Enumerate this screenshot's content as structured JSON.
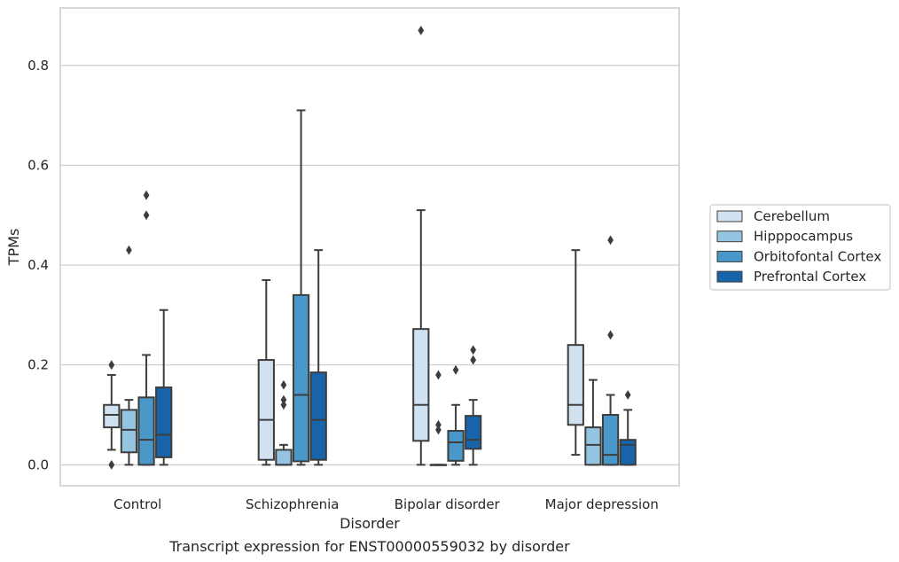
{
  "chart_data": {
    "type": "box",
    "title": "",
    "caption": "Transcript expression for ENST00000559032 by disorder",
    "xlabel": "Disorder",
    "ylabel": "TPMs",
    "ylim": [
      -0.042,
      0.915
    ],
    "yticks": [
      0.0,
      0.2,
      0.4,
      0.6,
      0.8
    ],
    "ytick_labels": [
      "0.0",
      "0.2",
      "0.4",
      "0.6",
      "0.8"
    ],
    "grid": "horizontal",
    "legend_placement": "right",
    "categories": [
      "Control",
      "Schizophrenia",
      "Bipolar disorder",
      "Major depression"
    ],
    "series": [
      {
        "name": "Cerebellum",
        "color": "#d0e1f2",
        "boxes": [
          {
            "whisker_low": 0.03,
            "q1": 0.075,
            "median": 0.1,
            "q3": 0.12,
            "whisker_high": 0.18,
            "outliers": [
              0.2,
              0.0
            ]
          },
          {
            "whisker_low": 0.0,
            "q1": 0.01,
            "median": 0.09,
            "q3": 0.21,
            "whisker_high": 0.37,
            "outliers": []
          },
          {
            "whisker_low": 0.0,
            "q1": 0.048,
            "median": 0.12,
            "q3": 0.272,
            "whisker_high": 0.51,
            "outliers": [
              0.87
            ]
          },
          {
            "whisker_low": 0.02,
            "q1": 0.08,
            "median": 0.12,
            "q3": 0.24,
            "whisker_high": 0.43,
            "outliers": []
          }
        ]
      },
      {
        "name": "Hipppocampus",
        "color": "#94c4df",
        "boxes": [
          {
            "whisker_low": 0.0,
            "q1": 0.025,
            "median": 0.07,
            "q3": 0.11,
            "whisker_high": 0.13,
            "outliers": [
              0.43
            ]
          },
          {
            "whisker_low": 0.0,
            "q1": 0.0,
            "median": 0.0,
            "q3": 0.03,
            "whisker_high": 0.04,
            "outliers": [
              0.16,
              0.13,
              0.12
            ]
          },
          {
            "whisker_low": 0.0,
            "q1": 0.0,
            "median": 0.0,
            "q3": 0.0,
            "whisker_high": 0.0,
            "outliers": [
              0.18,
              0.08,
              0.07
            ]
          },
          {
            "whisker_low": 0.0,
            "q1": 0.0,
            "median": 0.04,
            "q3": 0.075,
            "whisker_high": 0.17,
            "outliers": []
          }
        ]
      },
      {
        "name": "Orbitofontal Cortex",
        "color": "#4a98c9",
        "boxes": [
          {
            "whisker_low": 0.0,
            "q1": 0.0,
            "median": 0.05,
            "q3": 0.135,
            "whisker_high": 0.22,
            "outliers": [
              0.54,
              0.5
            ]
          },
          {
            "whisker_low": 0.0,
            "q1": 0.007,
            "median": 0.14,
            "q3": 0.34,
            "whisker_high": 0.71,
            "outliers": []
          },
          {
            "whisker_low": 0.0,
            "q1": 0.008,
            "median": 0.045,
            "q3": 0.068,
            "whisker_high": 0.12,
            "outliers": [
              0.19
            ]
          },
          {
            "whisker_low": 0.0,
            "q1": 0.0,
            "median": 0.02,
            "q3": 0.1,
            "whisker_high": 0.14,
            "outliers": [
              0.45,
              0.26
            ]
          }
        ]
      },
      {
        "name": "Prefrontal Cortex",
        "color": "#1764ab",
        "boxes": [
          {
            "whisker_low": 0.0,
            "q1": 0.015,
            "median": 0.06,
            "q3": 0.155,
            "whisker_high": 0.31,
            "outliers": []
          },
          {
            "whisker_low": 0.0,
            "q1": 0.01,
            "median": 0.09,
            "q3": 0.185,
            "whisker_high": 0.43,
            "outliers": []
          },
          {
            "whisker_low": 0.0,
            "q1": 0.032,
            "median": 0.05,
            "q3": 0.098,
            "whisker_high": 0.13,
            "outliers": [
              0.23,
              0.21
            ]
          },
          {
            "whisker_low": 0.0,
            "q1": 0.0,
            "median": 0.04,
            "q3": 0.05,
            "whisker_high": 0.11,
            "outliers": [
              0.14
            ]
          }
        ]
      }
    ]
  }
}
